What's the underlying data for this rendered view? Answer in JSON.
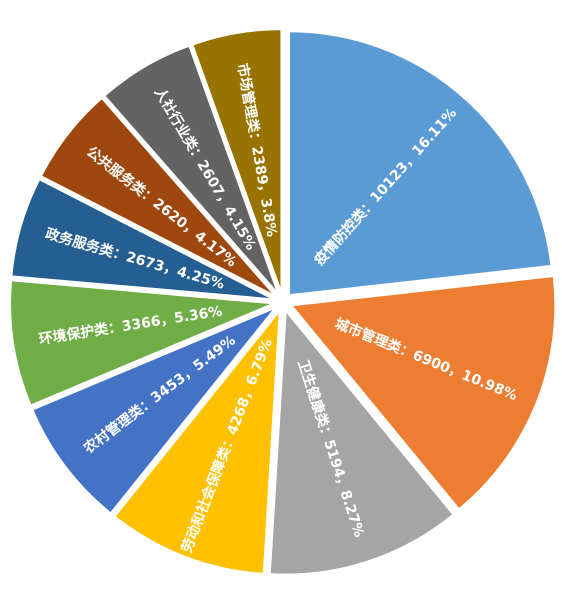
{
  "chart_data": {
    "type": "pie",
    "values": [
      10123,
      6900,
      5194,
      4268,
      3453,
      3366,
      2673,
      2620,
      2607,
      2389
    ],
    "value_labels": [
      "疫情防控类：10123，16.11%",
      "城市管理类：6900，10.98%",
      "卫生健康类：5194，8.27%",
      "劳动和社会保障类：4268，6.79%",
      "农村管理类：3453，5.49%",
      "环境保护类：3366，5.36%",
      "政务服务类：2673，4.25%",
      "公共服务类：2620，4.17%",
      "人社行业类：2607，4.15%",
      "市场管理类：2389，3.8%"
    ],
    "colors": [
      "#5b9bd5",
      "#ed7d31",
      "#a5a5a5",
      "#ffc000",
      "#4472c4",
      "#70ad47",
      "#255e91",
      "#9e480e",
      "#636363",
      "#997300"
    ]
  }
}
